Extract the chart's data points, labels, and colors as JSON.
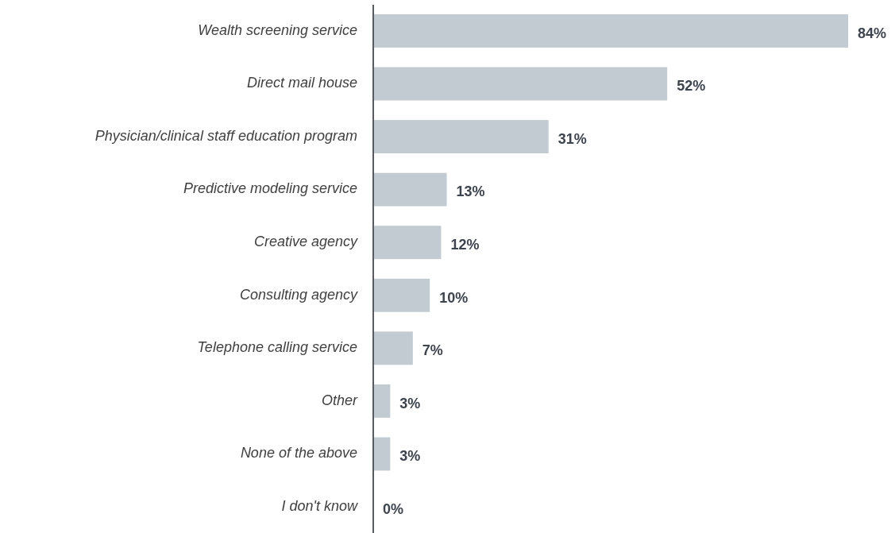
{
  "chart_data": {
    "type": "bar",
    "orientation": "horizontal",
    "categories": [
      "Wealth screening service",
      "Direct mail house",
      "Physician/clinical staff education program",
      "Predictive modeling service",
      "Creative agency",
      "Consulting agency",
      "Telephone calling service",
      "Other",
      "None of the above",
      "I don't know"
    ],
    "values": [
      84,
      52,
      31,
      13,
      12,
      10,
      7,
      3,
      3,
      0
    ],
    "value_labels": [
      "84%",
      "52%",
      "31%",
      "13%",
      "12%",
      "10%",
      "7%",
      "3%",
      "3%",
      "0%"
    ],
    "color": "#c2cbd2"
  }
}
